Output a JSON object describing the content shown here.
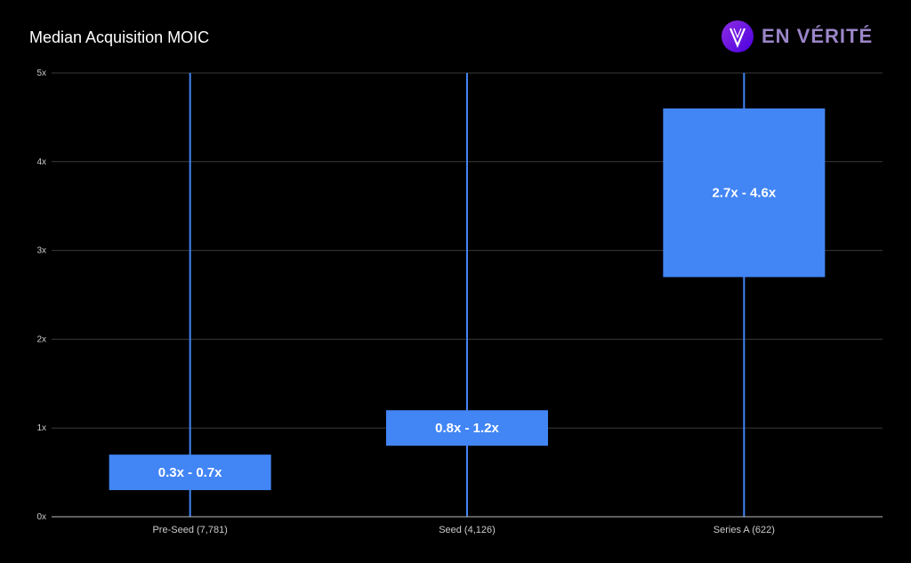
{
  "logo": {
    "text": "EN VÉRITÉ",
    "mark_letter": "V"
  },
  "colors": {
    "box": "#4285f4",
    "whisker": "#4285f4",
    "grid": "#3a3a3a",
    "axis": "#bbbbbb",
    "background": "#000000"
  },
  "chart_data": {
    "type": "candlestick",
    "title": "Median Acquisition MOIC",
    "xlabel": "",
    "ylabel": "",
    "ylim": [
      0,
      5
    ],
    "y_ticks": [
      "0x",
      "1x",
      "2x",
      "3x",
      "4x",
      "5x"
    ],
    "y_tick_values": [
      0,
      1,
      2,
      3,
      4,
      5
    ],
    "grid": true,
    "categories": [
      "Pre-Seed (7,781)",
      "Seed (4,126)",
      "Series A (622)"
    ],
    "ranges": [
      {
        "low": 0.3,
        "high": 0.7,
        "label": "0.3x - 0.7x"
      },
      {
        "low": 0.8,
        "high": 1.2,
        "label": "0.8x - 1.2x"
      },
      {
        "low": 2.7,
        "high": 4.6,
        "label": "2.7x - 4.6x"
      }
    ],
    "whisker_max": 5
  }
}
